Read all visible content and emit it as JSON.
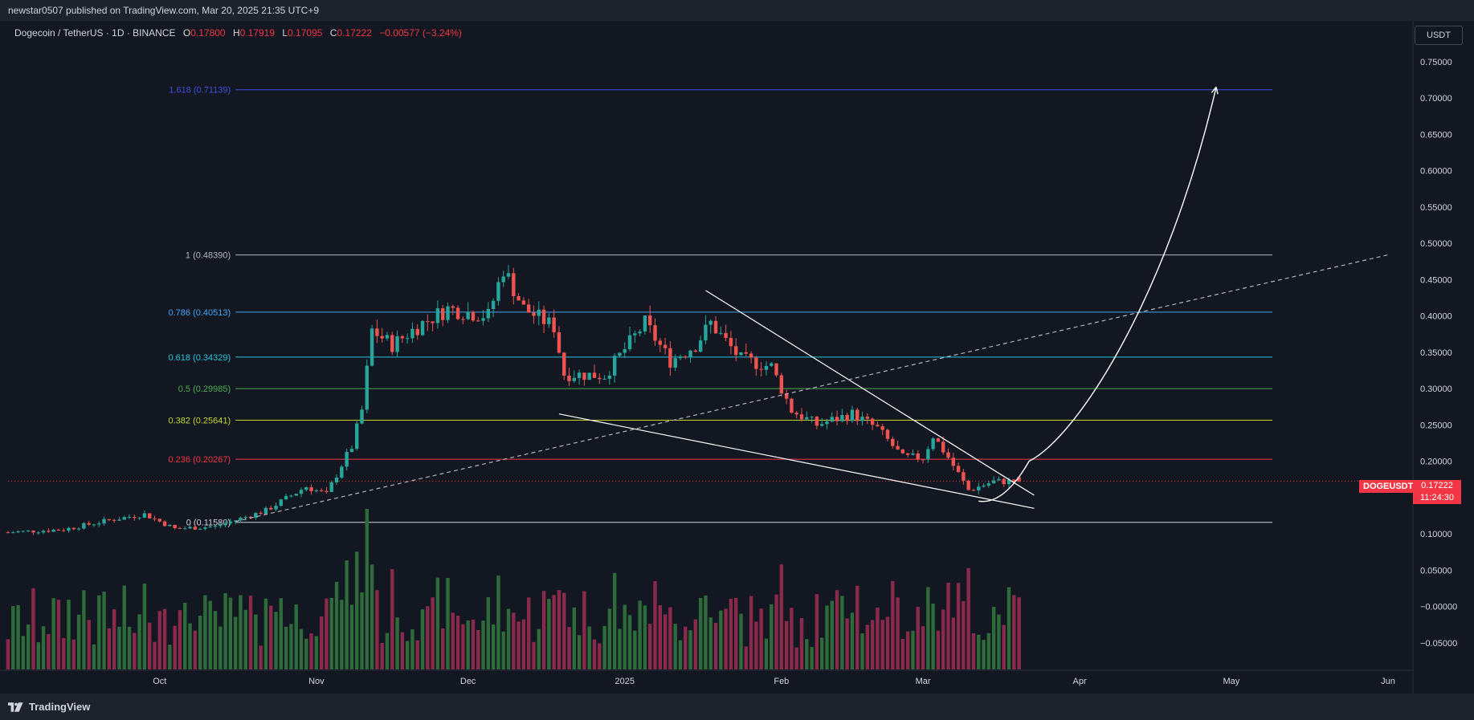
{
  "header": {
    "published_text": "newstar0507 published on TradingView.com, Mar 20, 2025 21:35 UTC+9"
  },
  "symbol": {
    "name": "Dogecoin / TetherUS · 1D · BINANCE",
    "open_label": "O",
    "open": "0.17800",
    "high_label": "H",
    "high": "0.17919",
    "low_label": "L",
    "low": "0.17095",
    "close_label": "C",
    "close": "0.17222",
    "change": "−0.00577 (−3.24%)"
  },
  "currency_button": "USDT",
  "price_tag": {
    "ticker": "DOGEUSDT",
    "price": "0.17222",
    "countdown": "11:24:30"
  },
  "footer": {
    "brand": "TradingView"
  },
  "colors": {
    "background": "#131722",
    "up": "#26a69a",
    "down": "#ef5350",
    "volume_up": "#2e6b3a",
    "volume_down": "#8a2a4a"
  },
  "chart_data": {
    "type": "candlestick",
    "yaxis": {
      "ticks": [
        0.75,
        0.7,
        0.65,
        0.6,
        0.55,
        0.5,
        0.45,
        0.4,
        0.35,
        0.3,
        0.25,
        0.2,
        0.15,
        0.1,
        0.05,
        0,
        -0.05
      ],
      "tick_labels": [
        "0.75000",
        "0.70000",
        "0.65000",
        "0.60000",
        "0.55000",
        "0.50000",
        "0.45000",
        "0.40000",
        "0.35000",
        "0.30000",
        "0.25000",
        "0.20000",
        "0.15000",
        "0.10000",
        "0.05000",
        "−0.00000",
        "−0.05000"
      ]
    },
    "xaxis": {
      "ticks": [
        "2024-10-01",
        "2024-11-01",
        "2024-12-01",
        "2025-01-01",
        "2025-02-01",
        "2025-03-01",
        "2025-04-01",
        "2025-05-01",
        "2025-06-01"
      ],
      "tick_labels": [
        "Oct",
        "Nov",
        "Dec",
        "2025",
        "Feb",
        "Mar",
        "Apr",
        "May",
        "Jun"
      ],
      "range": [
        "2024-09-01",
        "2025-06-01"
      ]
    },
    "fib_levels": [
      {
        "ratio_label": "0",
        "value": 0.1158,
        "text": "0 (0.11580)",
        "color": "#d1d4dc"
      },
      {
        "ratio_label": "0.236",
        "value": 0.20267,
        "text": "0.236 (0.20267)",
        "color": "#f23645"
      },
      {
        "ratio_label": "0.382",
        "value": 0.25641,
        "text": "0.382 (0.25641)",
        "color": "#c4d62b"
      },
      {
        "ratio_label": "0.5",
        "value": 0.29985,
        "text": "0.5 (0.29985)",
        "color": "#4caf50"
      },
      {
        "ratio_label": "0.618",
        "value": 0.34329,
        "text": "0.618 (0.34329)",
        "color": "#26c6da"
      },
      {
        "ratio_label": "0.786",
        "value": 0.40513,
        "text": "0.786 (0.40513)",
        "color": "#42a5f5"
      },
      {
        "ratio_label": "1",
        "value": 0.4839,
        "text": "1 (0.48390)",
        "color": "#b2b5be"
      },
      {
        "ratio_label": "1.618",
        "value": 0.71139,
        "text": "1.618 (0.71139)",
        "color": "#3f51d9"
      }
    ],
    "current_price": 0.17222,
    "anchors": [
      {
        "date": "2024-09-01",
        "price": 0.102
      },
      {
        "date": "2024-09-12",
        "price": 0.106
      },
      {
        "date": "2024-09-22",
        "price": 0.12
      },
      {
        "date": "2024-09-28",
        "price": 0.127
      },
      {
        "date": "2024-10-04",
        "price": 0.107
      },
      {
        "date": "2024-10-12",
        "price": 0.11
      },
      {
        "date": "2024-10-22",
        "price": 0.132
      },
      {
        "date": "2024-10-30",
        "price": 0.165
      },
      {
        "date": "2024-11-03",
        "price": 0.154
      },
      {
        "date": "2024-11-06",
        "price": 0.195
      },
      {
        "date": "2024-11-08",
        "price": 0.22
      },
      {
        "date": "2024-11-10",
        "price": 0.27
      },
      {
        "date": "2024-11-12",
        "price": 0.38
      },
      {
        "date": "2024-11-16",
        "price": 0.36
      },
      {
        "date": "2024-11-22",
        "price": 0.39
      },
      {
        "date": "2024-11-27",
        "price": 0.41
      },
      {
        "date": "2024-12-05",
        "price": 0.4
      },
      {
        "date": "2024-12-08",
        "price": 0.465
      },
      {
        "date": "2024-12-12",
        "price": 0.41
      },
      {
        "date": "2024-12-18",
        "price": 0.385
      },
      {
        "date": "2024-12-20",
        "price": 0.32
      },
      {
        "date": "2024-12-28",
        "price": 0.318
      },
      {
        "date": "2025-01-05",
        "price": 0.39
      },
      {
        "date": "2025-01-10",
        "price": 0.338
      },
      {
        "date": "2025-01-15",
        "price": 0.36
      },
      {
        "date": "2025-01-18",
        "price": 0.39
      },
      {
        "date": "2025-01-24",
        "price": 0.34
      },
      {
        "date": "2025-01-30",
        "price": 0.33
      },
      {
        "date": "2025-02-03",
        "price": 0.27
      },
      {
        "date": "2025-02-08",
        "price": 0.25
      },
      {
        "date": "2025-02-15",
        "price": 0.265
      },
      {
        "date": "2025-02-20",
        "price": 0.245
      },
      {
        "date": "2025-02-25",
        "price": 0.205
      },
      {
        "date": "2025-03-01",
        "price": 0.205
      },
      {
        "date": "2025-03-03",
        "price": 0.235
      },
      {
        "date": "2025-03-06",
        "price": 0.205
      },
      {
        "date": "2025-03-10",
        "price": 0.16
      },
      {
        "date": "2025-03-15",
        "price": 0.172
      },
      {
        "date": "2025-03-20",
        "price": 0.17222
      }
    ],
    "trendlines": [
      {
        "name": "wedge-upper",
        "from": [
          "2025-01-17",
          0.435
        ],
        "to": [
          "2025-03-23",
          0.153
        ],
        "color": "#ffffff",
        "dashed": false
      },
      {
        "name": "wedge-lower",
        "from": [
          "2024-12-19",
          0.265
        ],
        "to": [
          "2025-03-23",
          0.135
        ],
        "color": "#ffffff",
        "dashed": false
      },
      {
        "name": "rising-support",
        "from": [
          "2024-10-16",
          0.117
        ],
        "to": [
          "2025-06-01",
          0.484
        ],
        "color": "#b2b5be",
        "dashed": true
      }
    ],
    "projection": {
      "from": [
        "2025-03-12",
        0.145
      ],
      "via": [
        "2025-03-22",
        0.2
      ],
      "to": [
        "2025-04-28",
        0.715
      ],
      "color": "#ffffff"
    },
    "grid": false,
    "legend": "none"
  }
}
